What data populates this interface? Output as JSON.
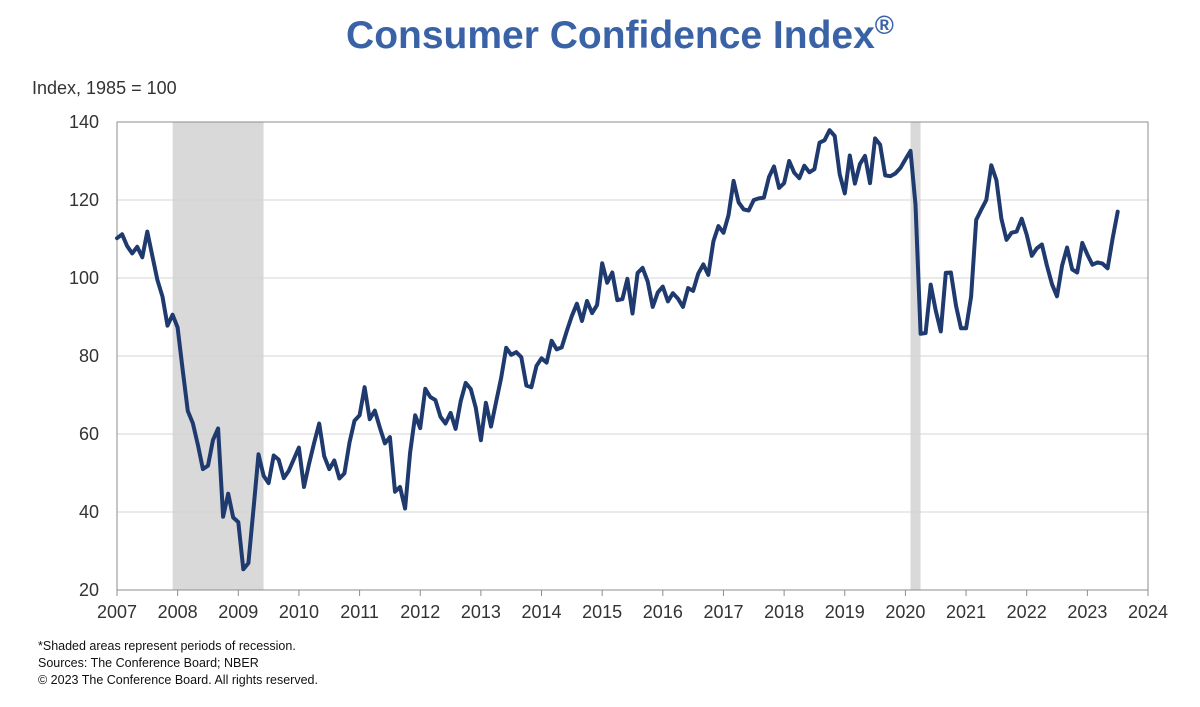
{
  "chart_data": {
    "type": "line",
    "title": "Consumer Confidence Index",
    "title_mark": "®",
    "ylabel": "Index, 1985 = 100",
    "xlabel": "",
    "xlim": [
      2007,
      2024
    ],
    "ylim": [
      20,
      140
    ],
    "y_ticks": [
      20,
      40,
      60,
      80,
      100,
      120,
      140
    ],
    "x_ticks": [
      2007,
      2008,
      2009,
      2010,
      2011,
      2012,
      2013,
      2014,
      2015,
      2016,
      2017,
      2018,
      2019,
      2020,
      2021,
      2022,
      2023,
      2024
    ],
    "grid": "horizontal",
    "line_color": "#1f3a6e",
    "recession_color": "#d9d9d9",
    "recessions": [
      {
        "start": "2007-12",
        "end": "2009-06"
      },
      {
        "start": "2020-02",
        "end": "2020-04"
      }
    ],
    "series": [
      {
        "x": [
          "2007-01",
          "2007-02",
          "2007-03",
          "2007-04",
          "2007-05",
          "2007-06",
          "2007-07",
          "2007-08",
          "2007-09",
          "2007-10",
          "2007-11",
          "2007-12",
          "2008-01",
          "2008-02",
          "2008-03",
          "2008-04",
          "2008-05",
          "2008-06",
          "2008-07",
          "2008-08",
          "2008-09",
          "2008-10",
          "2008-11",
          "2008-12",
          "2009-01",
          "2009-02",
          "2009-03",
          "2009-04",
          "2009-05",
          "2009-06",
          "2009-07",
          "2009-08",
          "2009-09",
          "2009-10",
          "2009-11",
          "2009-12",
          "2010-01",
          "2010-02",
          "2010-03",
          "2010-04",
          "2010-05",
          "2010-06",
          "2010-07",
          "2010-08",
          "2010-09",
          "2010-10",
          "2010-11",
          "2010-12",
          "2011-01",
          "2011-02",
          "2011-03",
          "2011-04",
          "2011-05",
          "2011-06",
          "2011-07",
          "2011-08",
          "2011-09",
          "2011-10",
          "2011-11",
          "2011-12",
          "2012-01",
          "2012-02",
          "2012-03",
          "2012-04",
          "2012-05",
          "2012-06",
          "2012-07",
          "2012-08",
          "2012-09",
          "2012-10",
          "2012-11",
          "2012-12",
          "2013-01",
          "2013-02",
          "2013-03",
          "2013-04",
          "2013-05",
          "2013-06",
          "2013-07",
          "2013-08",
          "2013-09",
          "2013-10",
          "2013-11",
          "2013-12",
          "2014-01",
          "2014-02",
          "2014-03",
          "2014-04",
          "2014-05",
          "2014-06",
          "2014-07",
          "2014-08",
          "2014-09",
          "2014-10",
          "2014-11",
          "2014-12",
          "2015-01",
          "2015-02",
          "2015-03",
          "2015-04",
          "2015-05",
          "2015-06",
          "2015-07",
          "2015-08",
          "2015-09",
          "2015-10",
          "2015-11",
          "2015-12",
          "2016-01",
          "2016-02",
          "2016-03",
          "2016-04",
          "2016-05",
          "2016-06",
          "2016-07",
          "2016-08",
          "2016-09",
          "2016-10",
          "2016-11",
          "2016-12",
          "2017-01",
          "2017-02",
          "2017-03",
          "2017-04",
          "2017-05",
          "2017-06",
          "2017-07",
          "2017-08",
          "2017-09",
          "2017-10",
          "2017-11",
          "2017-12",
          "2018-01",
          "2018-02",
          "2018-03",
          "2018-04",
          "2018-05",
          "2018-06",
          "2018-07",
          "2018-08",
          "2018-09",
          "2018-10",
          "2018-11",
          "2018-12",
          "2019-01",
          "2019-02",
          "2019-03",
          "2019-04",
          "2019-05",
          "2019-06",
          "2019-07",
          "2019-08",
          "2019-09",
          "2019-10",
          "2019-11",
          "2019-12",
          "2020-01",
          "2020-02",
          "2020-03",
          "2020-04",
          "2020-05",
          "2020-06",
          "2020-07",
          "2020-08",
          "2020-09",
          "2020-10",
          "2020-11",
          "2020-12",
          "2021-01",
          "2021-02",
          "2021-03",
          "2021-04",
          "2021-05",
          "2021-06",
          "2021-07",
          "2021-08",
          "2021-09",
          "2021-10",
          "2021-11",
          "2021-12",
          "2022-01",
          "2022-02",
          "2022-03",
          "2022-04",
          "2022-05",
          "2022-06",
          "2022-07",
          "2022-08",
          "2022-09",
          "2022-10",
          "2022-11",
          "2022-12",
          "2023-01",
          "2023-02",
          "2023-03",
          "2023-04",
          "2023-05",
          "2023-06",
          "2023-07"
        ],
        "values": [
          110.2,
          111.2,
          108.2,
          106.3,
          108.0,
          105.3,
          111.9,
          105.6,
          99.5,
          95.2,
          87.8,
          90.6,
          87.3,
          76.4,
          65.9,
          62.8,
          57.2,
          51.0,
          51.9,
          58.5,
          61.4,
          38.8,
          44.7,
          38.6,
          37.4,
          25.3,
          26.9,
          40.8,
          54.8,
          49.3,
          47.4,
          54.5,
          53.4,
          48.7,
          50.6,
          53.6,
          56.5,
          46.4,
          52.3,
          57.7,
          62.7,
          54.3,
          51.0,
          53.2,
          48.6,
          49.9,
          57.8,
          63.4,
          64.8,
          72.0,
          63.8,
          66.0,
          61.7,
          57.6,
          59.2,
          45.2,
          46.4,
          40.9,
          55.2,
          64.8,
          61.5,
          71.6,
          69.5,
          68.7,
          64.4,
          62.7,
          65.4,
          61.3,
          68.4,
          73.1,
          71.5,
          66.7,
          58.4,
          68.0,
          61.9,
          68.1,
          74.3,
          82.1,
          80.3,
          81.0,
          79.7,
          72.4,
          72.0,
          77.5,
          79.4,
          78.3,
          83.9,
          81.7,
          82.2,
          86.4,
          90.3,
          93.4,
          89.0,
          94.1,
          91.0,
          93.1,
          103.8,
          98.8,
          101.4,
          94.3,
          94.6,
          99.8,
          90.9,
          101.3,
          102.6,
          99.1,
          92.6,
          96.3,
          97.8,
          94.0,
          96.1,
          94.7,
          92.6,
          97.4,
          96.7,
          101.1,
          103.5,
          100.8,
          109.4,
          113.3,
          111.6,
          116.1,
          124.9,
          119.4,
          117.6,
          117.3,
          120.0,
          120.4,
          120.6,
          125.9,
          128.6,
          123.1,
          124.3,
          130.0,
          127.0,
          125.6,
          128.8,
          127.1,
          127.9,
          134.7,
          135.3,
          137.9,
          136.4,
          126.6,
          121.7,
          131.4,
          124.2,
          129.2,
          131.3,
          124.3,
          135.8,
          134.2,
          126.3,
          126.1,
          126.8,
          128.2,
          130.4,
          132.6,
          118.8,
          85.7,
          85.9,
          98.3,
          91.7,
          86.3,
          101.3,
          101.4,
          92.9,
          87.1,
          87.1,
          95.2,
          114.9,
          117.5,
          120.0,
          128.9,
          125.1,
          115.2,
          109.8,
          111.6,
          111.9,
          115.2,
          111.1,
          105.7,
          107.6,
          108.6,
          103.2,
          98.4,
          95.3,
          103.2,
          107.8,
          102.2,
          101.4,
          109.0,
          106.0,
          103.4,
          104.0,
          103.7,
          102.5,
          110.1,
          117.0
        ]
      }
    ],
    "notes": [
      "*Shaded areas represent periods of recession.",
      "Sources: The Conference Board;  NBER",
      "© 2023 The Conference Board. All rights reserved."
    ]
  }
}
